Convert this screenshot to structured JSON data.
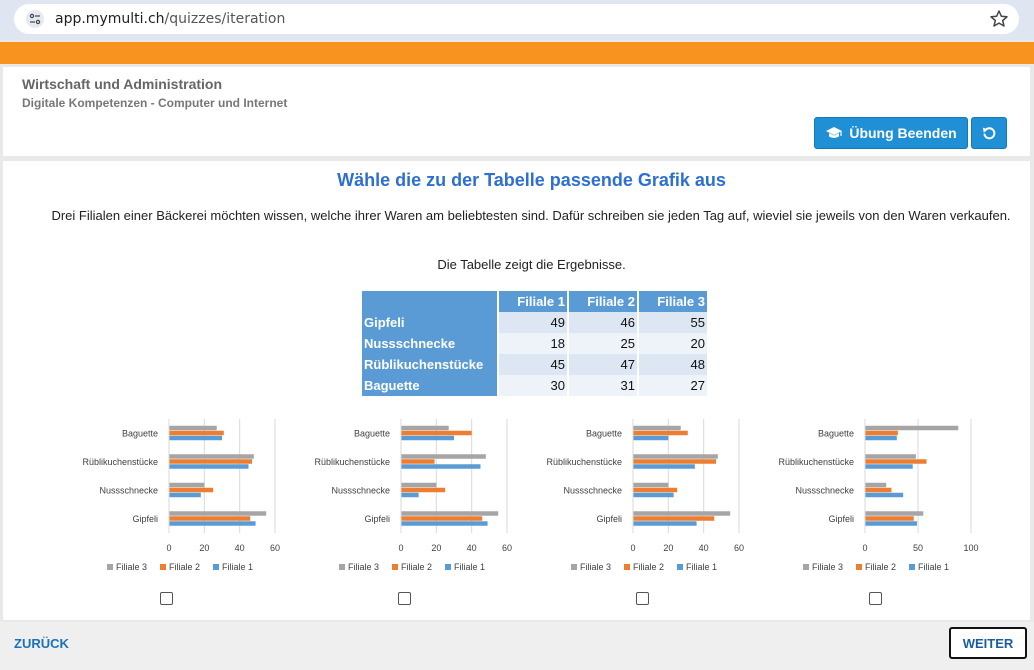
{
  "browser": {
    "url_host": "app.mymulti.ch",
    "url_path": "/quizzes/iteration"
  },
  "header": {
    "title": "Wirtschaft und Administration",
    "subtitle": "Digitale Kompetenzen - Computer und Internet",
    "end_button_label": "Übung Beenden",
    "end_button_icon": "graduation-cap-icon",
    "reset_button_icon": "undo-icon"
  },
  "question": {
    "title": "Wähle die zu der Tabelle passende Grafik aus",
    "text": "Drei Filialen einer Bäckerei möchten wissen, welche ihrer Waren am beliebtesten sind. Dafür schreiben sie jeden Tag auf, wieviel sie jeweils von den Waren verkaufen.",
    "text2": "Die Tabelle zeigt die Ergebnisse."
  },
  "table": {
    "columns": [
      "Filiale 1",
      "Filiale 2",
      "Filiale 3"
    ],
    "rows": [
      {
        "label": "Gipfeli",
        "values": [
          49,
          46,
          55
        ]
      },
      {
        "label": "Nussschnecke",
        "values": [
          18,
          25,
          20
        ]
      },
      {
        "label": "Rüblikuchenstücke",
        "values": [
          45,
          47,
          48
        ]
      },
      {
        "label": "Baguette",
        "values": [
          30,
          31,
          27
        ]
      }
    ]
  },
  "colors": {
    "filiale_1": "#5b9bd5",
    "filiale_2": "#ed7d31",
    "filiale_3": "#a5a5a5",
    "accent": "#2e6fd3",
    "orange_bar": "#f7931e"
  },
  "chart_data": [
    {
      "type": "bar",
      "orientation": "horizontal",
      "categories": [
        "Gipfeli",
        "Nussschnecke",
        "Rüblikuchenstücke",
        "Baguette"
      ],
      "series": [
        {
          "name": "Filiale 1",
          "values": [
            49,
            18,
            45,
            30
          ]
        },
        {
          "name": "Filiale 2",
          "values": [
            46,
            25,
            47,
            31
          ]
        },
        {
          "name": "Filiale 3",
          "values": [
            55,
            20,
            48,
            27
          ]
        }
      ],
      "xlim": [
        0,
        60
      ],
      "xticks": [
        0,
        20,
        40,
        60
      ],
      "legend_order": [
        "Filiale 3",
        "Filiale 2",
        "Filiale 1"
      ],
      "legend": "bottom"
    },
    {
      "type": "bar",
      "orientation": "horizontal",
      "categories": [
        "Gipfeli",
        "Nussschnecke",
        "Rüblikuchenstücke",
        "Baguette"
      ],
      "series": [
        {
          "name": "Filiale 1",
          "values": [
            49,
            10,
            45,
            30
          ]
        },
        {
          "name": "Filiale 2",
          "values": [
            46,
            25,
            19,
            40
          ]
        },
        {
          "name": "Filiale 3",
          "values": [
            55,
            20,
            48,
            27
          ]
        }
      ],
      "xlim": [
        0,
        60
      ],
      "xticks": [
        0,
        20,
        40,
        60
      ],
      "legend_order": [
        "Filiale 3",
        "Filiale 2",
        "Filiale 1"
      ],
      "legend": "bottom"
    },
    {
      "type": "bar",
      "orientation": "horizontal",
      "categories": [
        "Gipfeli",
        "Nussschnecke",
        "Rüblikuchenstücke",
        "Baguette"
      ],
      "series": [
        {
          "name": "Filiale 1",
          "values": [
            36,
            23,
            35,
            20
          ]
        },
        {
          "name": "Filiale 2",
          "values": [
            46,
            25,
            47,
            31
          ]
        },
        {
          "name": "Filiale 3",
          "values": [
            55,
            20,
            48,
            27
          ]
        }
      ],
      "xlim": [
        0,
        60
      ],
      "xticks": [
        0,
        20,
        40,
        60
      ],
      "legend_order": [
        "Filiale 3",
        "Filiale 2",
        "Filiale 1"
      ],
      "legend": "bottom"
    },
    {
      "type": "bar",
      "orientation": "horizontal",
      "categories": [
        "Gipfeli",
        "Nussschnecke",
        "Rüblikuchenstücke",
        "Baguette"
      ],
      "series": [
        {
          "name": "Filiale 1",
          "values": [
            49,
            36,
            45,
            30
          ]
        },
        {
          "name": "Filiale 2",
          "values": [
            46,
            25,
            58,
            31
          ]
        },
        {
          "name": "Filiale 3",
          "values": [
            55,
            20,
            48,
            88
          ]
        }
      ],
      "xlim": [
        0,
        100
      ],
      "xticks": [
        0,
        50,
        100
      ],
      "legend_order": [
        "Filiale 3",
        "Filiale 2",
        "Filiale 1"
      ],
      "legend": "bottom"
    }
  ],
  "footer": {
    "back_label": "ZURÜCK",
    "next_label": "WEITER"
  }
}
